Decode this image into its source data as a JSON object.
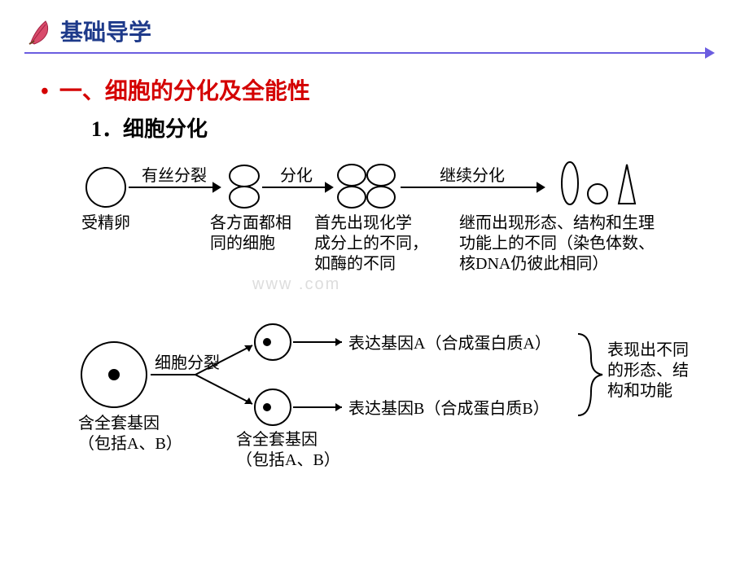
{
  "header": {
    "title": "基础导学"
  },
  "section": {
    "prefix": "一、",
    "title": "细胞的分化及全能性"
  },
  "subsection": {
    "num": "1．",
    "title": "细胞分化"
  },
  "colors": {
    "header_text": "#1e3a8a",
    "section_text": "#d40000",
    "body_text": "#000000",
    "hr": "#6b5de0",
    "stroke": "#000000",
    "watermark": "#dddddd"
  },
  "fonts": {
    "header_size": 28,
    "section_size": 28,
    "subsection_size": 26,
    "diagram_label_size": 20,
    "diagram_small_size": 18
  },
  "flow1": {
    "arrows": [
      {
        "label": "有丝分裂"
      },
      {
        "label": "分化"
      },
      {
        "label": "继续分化"
      }
    ],
    "node_labels": [
      "受精卵",
      "各方面都相\n同的细胞",
      "首先出现化学\n成分上的不同，\n如酶的不同",
      "继而出现形态、结构和生理\n功能上的不同（染色体数、\n核DNA仍彼此相同）"
    ]
  },
  "flow2": {
    "arrow_label": "细胞分裂",
    "src_label": "含全套基因\n（包括A、B）",
    "mid_label": "含全套基因\n（包括A、B）",
    "out_a": "表达基因A（合成蛋白质A）",
    "out_b": "表达基因B（合成蛋白质B）",
    "result": "表现出不同\n的形态、结\n构和功能"
  },
  "watermark": "www    .com"
}
